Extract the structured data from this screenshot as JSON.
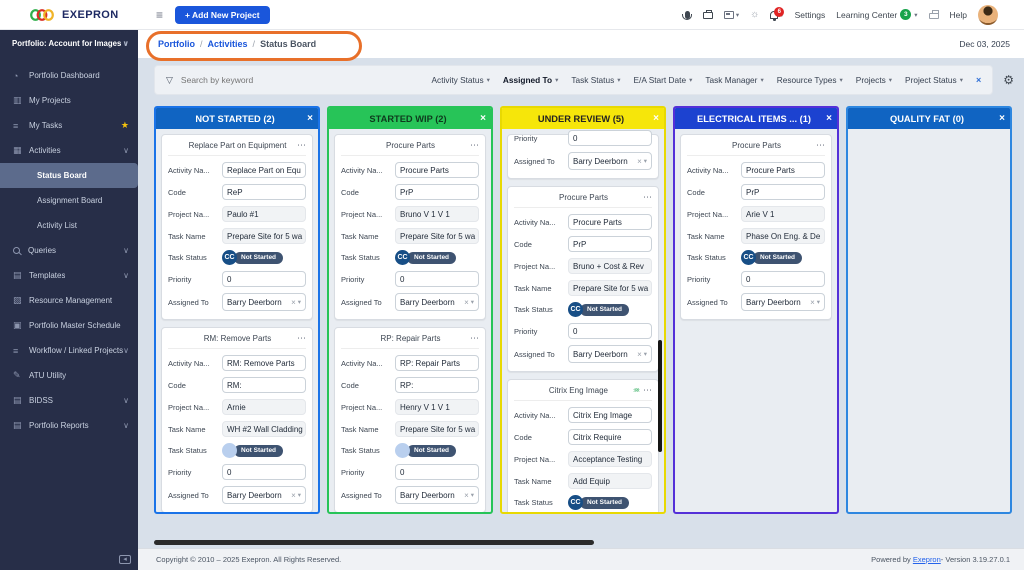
{
  "colors": {
    "accent": "#1a56db",
    "annotation_orange": "#e8702a"
  },
  "header": {
    "brand": "EXEPRON",
    "add_project_label": "+ Add New Project",
    "notifications_count": "6",
    "settings_label": "Settings",
    "learning_center_label": "Learning Center",
    "learning_center_count": "3",
    "help_label": "Help"
  },
  "sidebar": {
    "portfolio_selector": "Portfolio: Account for Images",
    "items": [
      {
        "label": "Portfolio Dashboard",
        "icon": "gauge-icon"
      },
      {
        "label": "My Projects",
        "icon": "bar-chart-icon"
      },
      {
        "label": "My Tasks",
        "icon": "checklist-icon",
        "starred": true
      },
      {
        "label": "Activities",
        "icon": "grid-icon",
        "expandable": true,
        "expanded": true
      },
      {
        "label": "Status Board",
        "child": true,
        "active": true
      },
      {
        "label": "Assignment Board",
        "child": true
      },
      {
        "label": "Activity List",
        "child": true
      },
      {
        "label": "Queries",
        "icon": "search-icon",
        "expandable": true
      },
      {
        "label": "Templates",
        "icon": "template-icon",
        "expandable": true
      },
      {
        "label": "Resource Management",
        "icon": "resource-chart-icon"
      },
      {
        "label": "Portfolio Master Schedule",
        "icon": "calendar-icon"
      },
      {
        "label": "Workflow / Linked Projects",
        "icon": "workflow-icon",
        "expandable": true
      },
      {
        "label": "ATU Utility",
        "icon": "pencil-icon"
      },
      {
        "label": "BIDSS",
        "icon": "document-icon",
        "expandable": true
      },
      {
        "label": "Portfolio Reports",
        "icon": "report-icon",
        "expandable": true
      }
    ]
  },
  "breadcrumb": {
    "items": [
      "Portfolio",
      "Activities",
      "Status Board"
    ],
    "separator": "/",
    "date": "Dec 03, 2025"
  },
  "filters": {
    "search_placeholder": "Search by keyword",
    "clear_icon": "×",
    "dropdowns": [
      {
        "label": "Activity Status"
      },
      {
        "label": "Assigned To",
        "bold": true
      },
      {
        "label": "Task Status"
      },
      {
        "label": "E/A Start Date"
      },
      {
        "label": "Task Manager"
      },
      {
        "label": "Resource Types"
      },
      {
        "label": "Projects"
      },
      {
        "label": "Project Status"
      }
    ]
  },
  "board": {
    "card_field_labels": {
      "activity_name": "Activity Na...",
      "code": "Code",
      "project_name": "Project Na...",
      "task_name": "Task Name",
      "task_status": "Task Status",
      "priority": "Priority",
      "assigned_to": "Assigned To"
    },
    "status_pill": "Not Started",
    "cc_badge": "CC",
    "columns": [
      {
        "title": "NOT STARTED (2)",
        "header_bg": "#1064c2",
        "header_text": "#ffffff",
        "border": "#1a73e8",
        "cards": [
          {
            "title": "Replace Part on Equipment",
            "activity_name": "Replace Part on Equ",
            "code": "ReP",
            "project_name": "Paulo #1",
            "task_name": "Prepare Site for 5 wa",
            "cc": true,
            "priority": "0",
            "assigned_to": "Barry Deerborn"
          },
          {
            "title": "RM: Remove Parts",
            "activity_name": "RM: Remove Parts",
            "code": "RM:",
            "project_name": "Arnie",
            "task_name": "WH #2 Wall Cladding",
            "cc": false,
            "priority": "0",
            "assigned_to": "Barry Deerborn"
          }
        ]
      },
      {
        "title": "STARTED WIP (2)",
        "header_bg": "#27c458",
        "header_text": "#0e3a1d",
        "border": "#27c458",
        "cards": [
          {
            "title": "Procure Parts",
            "activity_name": "Procure Parts",
            "code": "PrP",
            "project_name": "Bruno V 1 V 1",
            "task_name": "Prepare Site for 5 wa",
            "cc": true,
            "priority": "0",
            "assigned_to": "Barry Deerborn"
          },
          {
            "title": "RP: Repair Parts",
            "activity_name": "RP: Repair Parts",
            "code": "RP:",
            "project_name": "Henry V 1 V 1",
            "task_name": "Prepare Site for 5 wa",
            "cc": false,
            "priority": "0",
            "assigned_to": "Barry Deerborn"
          }
        ]
      },
      {
        "title": "UNDER REVIEW (5)",
        "header_bg": "#f6e60a",
        "header_text": "#222222",
        "border": "#e8d902",
        "scrollbar": true,
        "cards": [
          {
            "partial": true,
            "priority": "0",
            "assigned_to": "Barry Deerborn"
          },
          {
            "title": "Procure Parts",
            "activity_name": "Procure Parts",
            "code": "PrP",
            "project_name": "Bruno + Cost & Rev",
            "task_name": "Prepare Site for 5 wa",
            "cc": true,
            "priority": "0",
            "assigned_to": "Barry Deerborn"
          },
          {
            "title": "Citrix Eng Image",
            "runner_icon": true,
            "activity_name": "Citrix Eng Image",
            "code": "Citrix Require",
            "project_name": "Acceptance Testing",
            "task_name": "Add Equip",
            "cc": true,
            "priority": "0",
            "assigned_to": "Barry Deerborn"
          }
        ]
      },
      {
        "title": "ELECTRICAL ITEMS ... (1)",
        "header_bg": "#1c42d0",
        "header_text": "#ffffff",
        "border": "#5430d8",
        "cards": [
          {
            "title": "Procure Parts",
            "activity_name": "Procure Parts",
            "code": "PrP",
            "project_name": "Arie V 1",
            "task_name": "Phase On Eng. & De",
            "cc": true,
            "priority": "0",
            "assigned_to": "Barry Deerborn"
          }
        ]
      },
      {
        "title": "QUALITY FAT (0)",
        "header_bg": "#1064c2",
        "header_text": "#ffffff",
        "border": "#2e87e0",
        "cards": []
      }
    ]
  },
  "footer": {
    "copyright": "Copyright © 2010 – 2025 Exepron. All Rights Reserved.",
    "powered_prefix": "Powered by ",
    "powered_link": "Exepron",
    "powered_suffix": "- Version 3.19.27.0.1"
  }
}
